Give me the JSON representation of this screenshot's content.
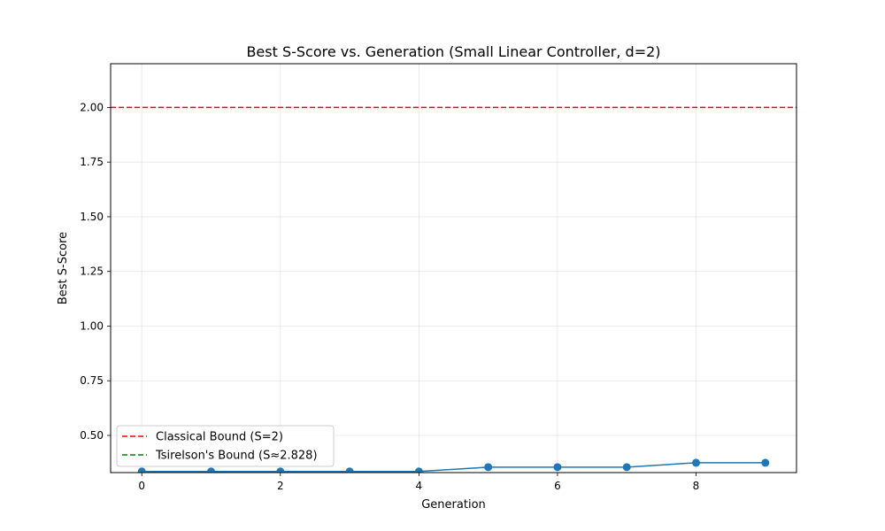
{
  "chart_data": {
    "type": "line",
    "title": "Best S-Score vs. Generation (Small Linear Controller, d=2)",
    "xlabel": "Generation",
    "ylabel": "Best S-Score",
    "xlim": [
      -0.45,
      9.45
    ],
    "ylim": [
      0.33,
      2.2
    ],
    "xticks": [
      0,
      2,
      4,
      6,
      8
    ],
    "xtick_labels": [
      "0",
      "2",
      "4",
      "6",
      "8"
    ],
    "yticks": [
      0.5,
      0.75,
      1.0,
      1.25,
      1.5,
      1.75,
      2.0
    ],
    "ytick_labels": [
      "0.50",
      "0.75",
      "1.00",
      "1.25",
      "1.50",
      "1.75",
      "2.00"
    ],
    "grid": true,
    "legend_position": "lower-left",
    "series": [
      {
        "x": [
          0,
          1,
          2,
          3,
          4,
          5,
          6,
          7,
          8,
          9
        ],
        "values": [
          0.335,
          0.335,
          0.335,
          0.335,
          0.335,
          0.355,
          0.355,
          0.355,
          0.375,
          0.375
        ],
        "color": "#1f77b4",
        "style": "solid",
        "marker": "circle"
      }
    ],
    "reference_lines": [
      {
        "name": "Classical Bound (S=2)",
        "y": 2.0,
        "color": "#ff0000",
        "style": "dashed"
      },
      {
        "name": "Tsirelson's Bound (S≈2.828)",
        "y": 2.828,
        "color": "#008000",
        "style": "dashed"
      }
    ]
  }
}
